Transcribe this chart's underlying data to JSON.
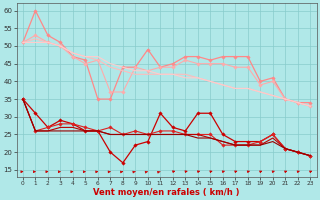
{
  "x": [
    0,
    1,
    2,
    3,
    4,
    5,
    6,
    7,
    8,
    9,
    10,
    11,
    12,
    13,
    14,
    15,
    16,
    17,
    18,
    19,
    20,
    21,
    22,
    23
  ],
  "lines": [
    {
      "y": [
        51,
        60,
        53,
        51,
        47,
        46,
        35,
        35,
        44,
        44,
        49,
        44,
        45,
        47,
        47,
        46,
        47,
        47,
        47,
        40,
        41,
        35,
        34,
        34
      ],
      "color": "#ff8888",
      "lw": 0.9,
      "marker": true
    },
    {
      "y": [
        51,
        53,
        51,
        50,
        47,
        45,
        46,
        37,
        37,
        44,
        43,
        44,
        44,
        46,
        45,
        45,
        45,
        44,
        44,
        39,
        40,
        35,
        34,
        33
      ],
      "color": "#ffaaaa",
      "lw": 0.8,
      "marker": true
    },
    {
      "y": [
        51,
        52,
        51,
        50,
        48,
        47,
        46,
        44,
        43,
        42,
        42,
        42,
        42,
        42,
        41,
        40,
        39,
        38,
        38,
        37,
        36,
        35,
        34,
        33
      ],
      "color": "#ffbbbb",
      "lw": 0.8,
      "marker": false
    },
    {
      "y": [
        51,
        51,
        51,
        50,
        48,
        47,
        47,
        45,
        44,
        43,
        43,
        42,
        42,
        41,
        41,
        40,
        39,
        38,
        38,
        37,
        36,
        35,
        34,
        33
      ],
      "color": "#ffcccc",
      "lw": 0.8,
      "marker": false
    },
    {
      "y": [
        35,
        31,
        27,
        29,
        28,
        26,
        26,
        20,
        17,
        22,
        23,
        31,
        27,
        26,
        31,
        31,
        25,
        23,
        23,
        23,
        25,
        21,
        20,
        19
      ],
      "color": "#cc0000",
      "lw": 0.9,
      "marker": true
    },
    {
      "y": [
        35,
        26,
        27,
        28,
        28,
        27,
        26,
        27,
        25,
        26,
        25,
        26,
        26,
        25,
        25,
        25,
        22,
        22,
        22,
        23,
        25,
        21,
        20,
        19
      ],
      "color": "#dd2222",
      "lw": 0.8,
      "marker": true
    },
    {
      "y": [
        35,
        26,
        26,
        27,
        27,
        26,
        26,
        25,
        25,
        25,
        25,
        25,
        25,
        25,
        25,
        24,
        23,
        22,
        22,
        22,
        24,
        21,
        20,
        19
      ],
      "color": "#bb0000",
      "lw": 0.8,
      "marker": false
    },
    {
      "y": [
        35,
        26,
        26,
        26,
        26,
        26,
        26,
        25,
        25,
        25,
        25,
        25,
        25,
        25,
        24,
        24,
        23,
        22,
        22,
        22,
        23,
        21,
        20,
        19
      ],
      "color": "#990000",
      "lw": 0.8,
      "marker": false
    }
  ],
  "arrow_angles": [
    5,
    5,
    5,
    8,
    8,
    10,
    15,
    20,
    25,
    30,
    35,
    38,
    42,
    45,
    45,
    48,
    50,
    50,
    50,
    52,
    52,
    52,
    52,
    52
  ],
  "bg_color": "#b0e8e8",
  "grid_color": "#88cccc",
  "arrow_color": "#cc0000",
  "xlabel": "Vent moyen/en rafales ( km/h )",
  "ylim": [
    13,
    62
  ],
  "xlim": [
    -0.5,
    23.5
  ],
  "yticks": [
    15,
    20,
    25,
    30,
    35,
    40,
    45,
    50,
    55,
    60
  ],
  "xticks": [
    0,
    1,
    2,
    3,
    4,
    5,
    6,
    7,
    8,
    9,
    10,
    11,
    12,
    13,
    14,
    15,
    16,
    17,
    18,
    19,
    20,
    21,
    22,
    23
  ]
}
